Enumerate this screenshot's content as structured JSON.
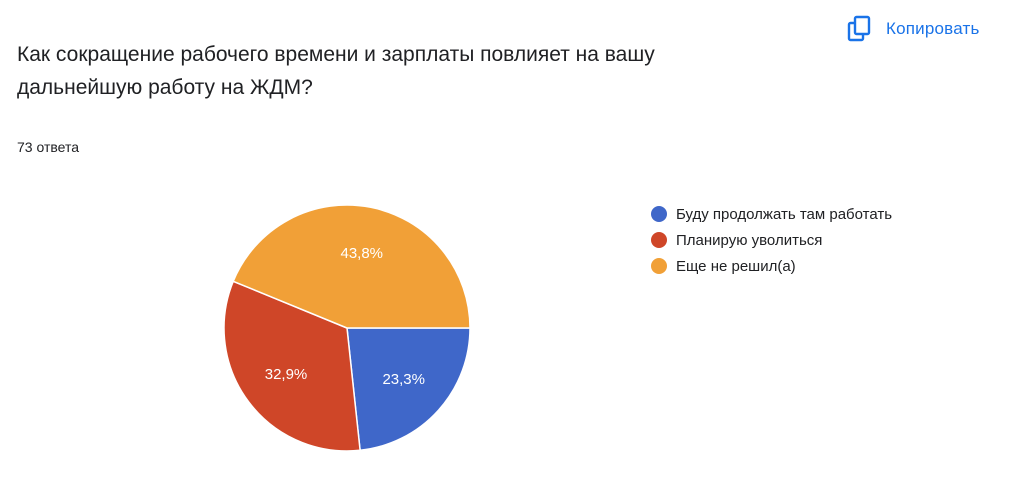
{
  "header": {
    "copy_label": "Копировать",
    "copy_icon": "copy-icon",
    "accent_color": "#1a73e8"
  },
  "question": {
    "title": "Как сокращение рабочего времени и зарплаты повлияет на вашу дальнейшую работу на ЖДМ?",
    "response_count": "73 ответа"
  },
  "chart_data": {
    "type": "pie",
    "legend_position": "right",
    "series": [
      {
        "name": "Буду продолжать там работать",
        "value": 23.3,
        "label": "23,3%",
        "color": "#3f67c9"
      },
      {
        "name": "Планирую уволиться",
        "value": 32.9,
        "label": "32,9%",
        "color": "#cf4628"
      },
      {
        "name": "Еще не решил(а)",
        "value": 43.8,
        "label": "43,8%",
        "color": "#f1a037"
      }
    ]
  }
}
